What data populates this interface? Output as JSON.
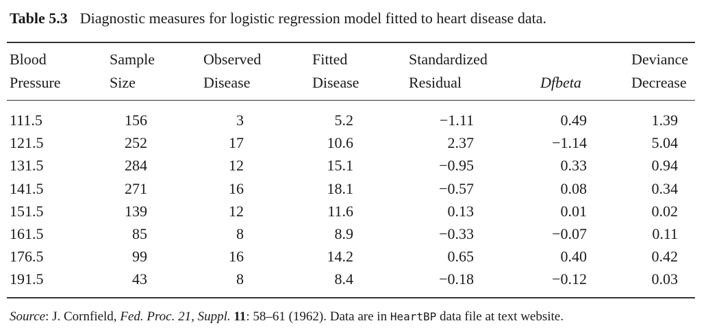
{
  "caption": {
    "label": "Table 5.3",
    "text": "Diagnostic measures for logistic regression model fitted to heart disease data."
  },
  "headers": [
    {
      "l1": "Blood",
      "l2": "Pressure"
    },
    {
      "l1": "Sample",
      "l2": "Size"
    },
    {
      "l1": "Observed",
      "l2": "Disease"
    },
    {
      "l1": "Fitted",
      "l2": "Disease"
    },
    {
      "l1": "Standardized",
      "l2": "Residual"
    },
    {
      "l1": "",
      "l2": "Dfbeta"
    },
    {
      "l1": "Deviance",
      "l2": "Decrease"
    }
  ],
  "rows": [
    [
      "111.5",
      "156",
      "3",
      "5.2",
      "−1.11",
      "0.49",
      "1.39"
    ],
    [
      "121.5",
      "252",
      "17",
      "10.6",
      "2.37",
      "−1.14",
      "5.04"
    ],
    [
      "131.5",
      "284",
      "12",
      "15.1",
      "−0.95",
      "0.33",
      "0.94"
    ],
    [
      "141.5",
      "271",
      "16",
      "18.1",
      "−0.57",
      "0.08",
      "0.34"
    ],
    [
      "151.5",
      "139",
      "12",
      "11.6",
      "0.13",
      "0.01",
      "0.02"
    ],
    [
      "161.5",
      "85",
      "8",
      "8.9",
      "−0.33",
      "−0.07",
      "0.11"
    ],
    [
      "176.5",
      "99",
      "16",
      "14.2",
      "0.65",
      "0.40",
      "0.42"
    ],
    [
      "191.5",
      "43",
      "8",
      "8.4",
      "−0.18",
      "−0.12",
      "0.03"
    ]
  ],
  "source": {
    "label": "Source",
    "author": ": J. Cornfield, ",
    "journal": "Fed. Proc. 21, Suppl.",
    "volume": "11",
    "pages": ": 58–61 (1962). Data are in ",
    "file": "HeartBP",
    "tail": " data file at text website."
  }
}
